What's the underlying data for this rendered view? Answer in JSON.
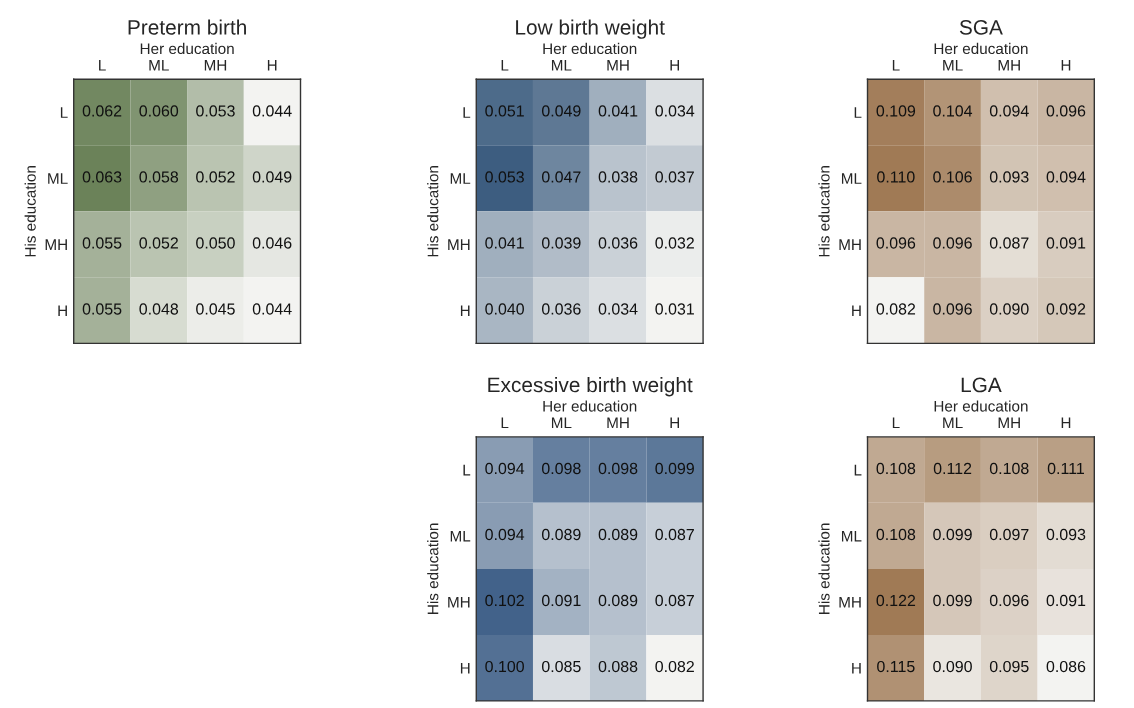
{
  "chart_data": [
    {
      "type": "heatmap",
      "title": "Preterm birth",
      "xlabel": "Her education",
      "ylabel": "His education",
      "color": "#6b8259",
      "categories": [
        "L",
        "ML",
        "MH",
        "H"
      ],
      "y_categories": [
        "L",
        "ML",
        "MH",
        "H"
      ],
      "cells": [
        [
          0.062,
          0.06,
          0.053,
          0.044
        ],
        [
          0.063,
          0.058,
          0.052,
          0.049
        ],
        [
          0.055,
          0.052,
          0.05,
          0.046
        ],
        [
          0.055,
          0.048,
          0.045,
          0.044
        ]
      ],
      "cell_labels": [
        [
          "0.062",
          "0.060",
          "0.053",
          "0.044"
        ],
        [
          "0.063",
          "0.058",
          "0.052",
          "0.049"
        ],
        [
          "0.055",
          "0.052",
          "0.050",
          "0.046"
        ],
        [
          "0.055",
          "0.048",
          "0.045",
          "0.044"
        ]
      ]
    },
    {
      "type": "heatmap",
      "title": "Low birth weight",
      "xlabel": "Her education",
      "ylabel": "His education",
      "color": "#3d5d80",
      "categories": [
        "L",
        "ML",
        "MH",
        "H"
      ],
      "y_categories": [
        "L",
        "ML",
        "MH",
        "H"
      ],
      "cells": [
        [
          0.051,
          0.049,
          0.041,
          0.034
        ],
        [
          0.053,
          0.047,
          0.038,
          0.037
        ],
        [
          0.041,
          0.039,
          0.036,
          0.032
        ],
        [
          0.04,
          0.036,
          0.034,
          0.031
        ]
      ],
      "cell_labels": [
        [
          "0.051",
          "0.049",
          "0.041",
          "0.034"
        ],
        [
          "0.053",
          "0.047",
          "0.038",
          "0.037"
        ],
        [
          "0.041",
          "0.039",
          "0.036",
          "0.032"
        ],
        [
          "0.040",
          "0.036",
          "0.034",
          "0.031"
        ]
      ]
    },
    {
      "type": "heatmap",
      "title": "SGA",
      "xlabel": "Her education",
      "ylabel": "His education",
      "color": "#a07a55",
      "categories": [
        "L",
        "ML",
        "MH",
        "H"
      ],
      "y_categories": [
        "L",
        "ML",
        "MH",
        "H"
      ],
      "cells": [
        [
          0.109,
          0.104,
          0.094,
          0.096
        ],
        [
          0.11,
          0.106,
          0.093,
          0.094
        ],
        [
          0.096,
          0.096,
          0.087,
          0.091
        ],
        [
          0.082,
          0.096,
          0.09,
          0.092
        ]
      ],
      "cell_labels": [
        [
          "0.109",
          "0.104",
          "0.094",
          "0.096"
        ],
        [
          "0.110",
          "0.106",
          "0.093",
          "0.094"
        ],
        [
          "0.096",
          "0.096",
          "0.087",
          "0.091"
        ],
        [
          "0.082",
          "0.096",
          "0.090",
          "0.092"
        ]
      ]
    },
    {
      "type": "heatmap",
      "title": "Excessive birth weight",
      "xlabel": "Her education",
      "ylabel": "His education",
      "color": "#42628a",
      "categories": [
        "L",
        "ML",
        "MH",
        "H"
      ],
      "y_categories": [
        "L",
        "ML",
        "MH",
        "H"
      ],
      "cells": [
        [
          0.094,
          0.098,
          0.098,
          0.099
        ],
        [
          0.094,
          0.089,
          0.089,
          0.087
        ],
        [
          0.102,
          0.091,
          0.089,
          0.087
        ],
        [
          0.1,
          0.085,
          0.088,
          0.082
        ]
      ],
      "cell_labels": [
        [
          "0.094",
          "0.098",
          "0.098",
          "0.099"
        ],
        [
          "0.094",
          "0.089",
          "0.089",
          "0.087"
        ],
        [
          "0.102",
          "0.091",
          "0.089",
          "0.087"
        ],
        [
          "0.100",
          "0.085",
          "0.088",
          "0.082"
        ]
      ]
    },
    {
      "type": "heatmap",
      "title": "LGA",
      "xlabel": "Her education",
      "ylabel": "His education",
      "color": "#a07a55",
      "categories": [
        "L",
        "ML",
        "MH",
        "H"
      ],
      "y_categories": [
        "L",
        "ML",
        "MH",
        "H"
      ],
      "cells": [
        [
          0.108,
          0.112,
          0.108,
          0.111
        ],
        [
          0.108,
          0.099,
          0.097,
          0.093
        ],
        [
          0.122,
          0.099,
          0.096,
          0.091
        ],
        [
          0.115,
          0.09,
          0.095,
          0.086
        ]
      ],
      "cell_labels": [
        [
          "0.108",
          "0.112",
          "0.108",
          "0.111"
        ],
        [
          "0.108",
          "0.099",
          "0.097",
          "0.093"
        ],
        [
          "0.122",
          "0.099",
          "0.096",
          "0.091"
        ],
        [
          "0.115",
          "0.090",
          "0.095",
          "0.086"
        ]
      ]
    }
  ]
}
